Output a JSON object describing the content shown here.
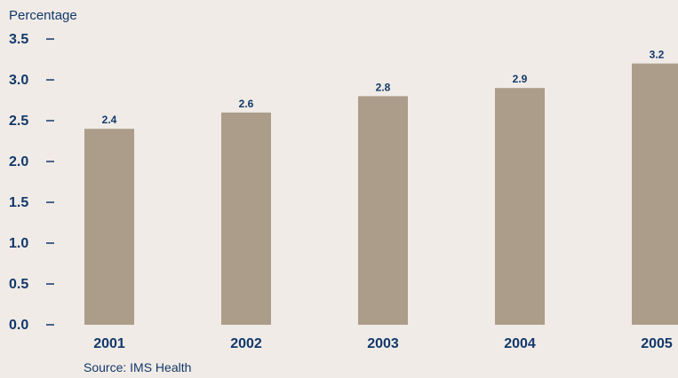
{
  "chart_data": {
    "type": "bar",
    "ylabel": "Percentage",
    "categories": [
      "2001",
      "2002",
      "2003",
      "2004",
      "2005"
    ],
    "values": [
      2.4,
      2.6,
      2.8,
      2.9,
      3.2
    ],
    "data_labels": [
      "2.4",
      "2.6",
      "2.8",
      "2.9",
      "3.2"
    ],
    "y_ticks": [
      "0.0",
      "0.5",
      "1.0",
      "1.5",
      "2.0",
      "2.5",
      "3.0",
      "3.5"
    ],
    "ylim": [
      0,
      3.5
    ],
    "grid": false,
    "legend": "none",
    "source": "Source: IMS Health",
    "colors": {
      "bar": "#ab9d89",
      "text": "#12386b",
      "background": "#f0ebe6"
    }
  }
}
